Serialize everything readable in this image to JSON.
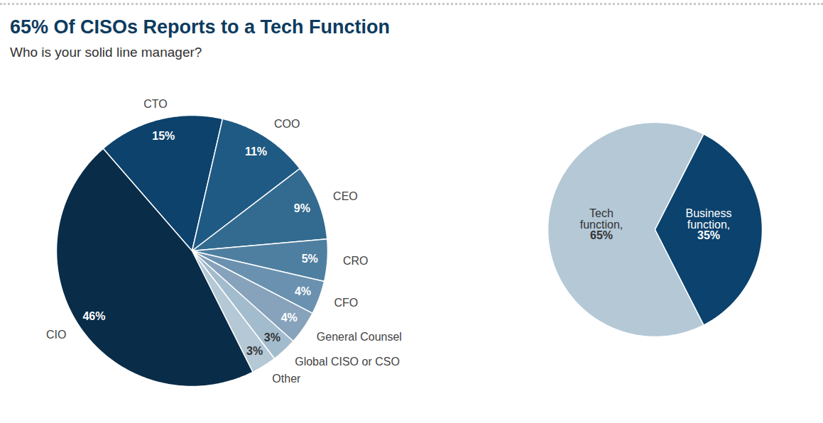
{
  "chart_data": [
    {
      "type": "pie",
      "title": "65% Of CISOs Reports to a Tech Function",
      "subtitle": "Who is your solid line manager?",
      "categories": [
        "CTO",
        "COO",
        "CEO",
        "CRO",
        "CFO",
        "General Counsel",
        "Global CISO or CSO",
        "Other",
        "CIO"
      ],
      "values": [
        15,
        11,
        9,
        5,
        4,
        4,
        3,
        3,
        46
      ],
      "value_labels": [
        "15%",
        "11%",
        "9%",
        "5%",
        "4%",
        "4%",
        "3%",
        "3%",
        "46%"
      ],
      "colors": [
        "#0c426c",
        "#1f5a84",
        "#336b90",
        "#4f7fa0",
        "#6a92b0",
        "#87a3bb",
        "#a3bccd",
        "#b4c8d6",
        "#092c48"
      ],
      "data_labels": true
    },
    {
      "type": "pie",
      "categories": [
        "Tech function,",
        "Business function,"
      ],
      "values": [
        65,
        35
      ],
      "value_labels": [
        "65%",
        "35%"
      ],
      "colors": [
        "#b4c8d6",
        "#0b426e"
      ],
      "data_labels": true
    }
  ]
}
